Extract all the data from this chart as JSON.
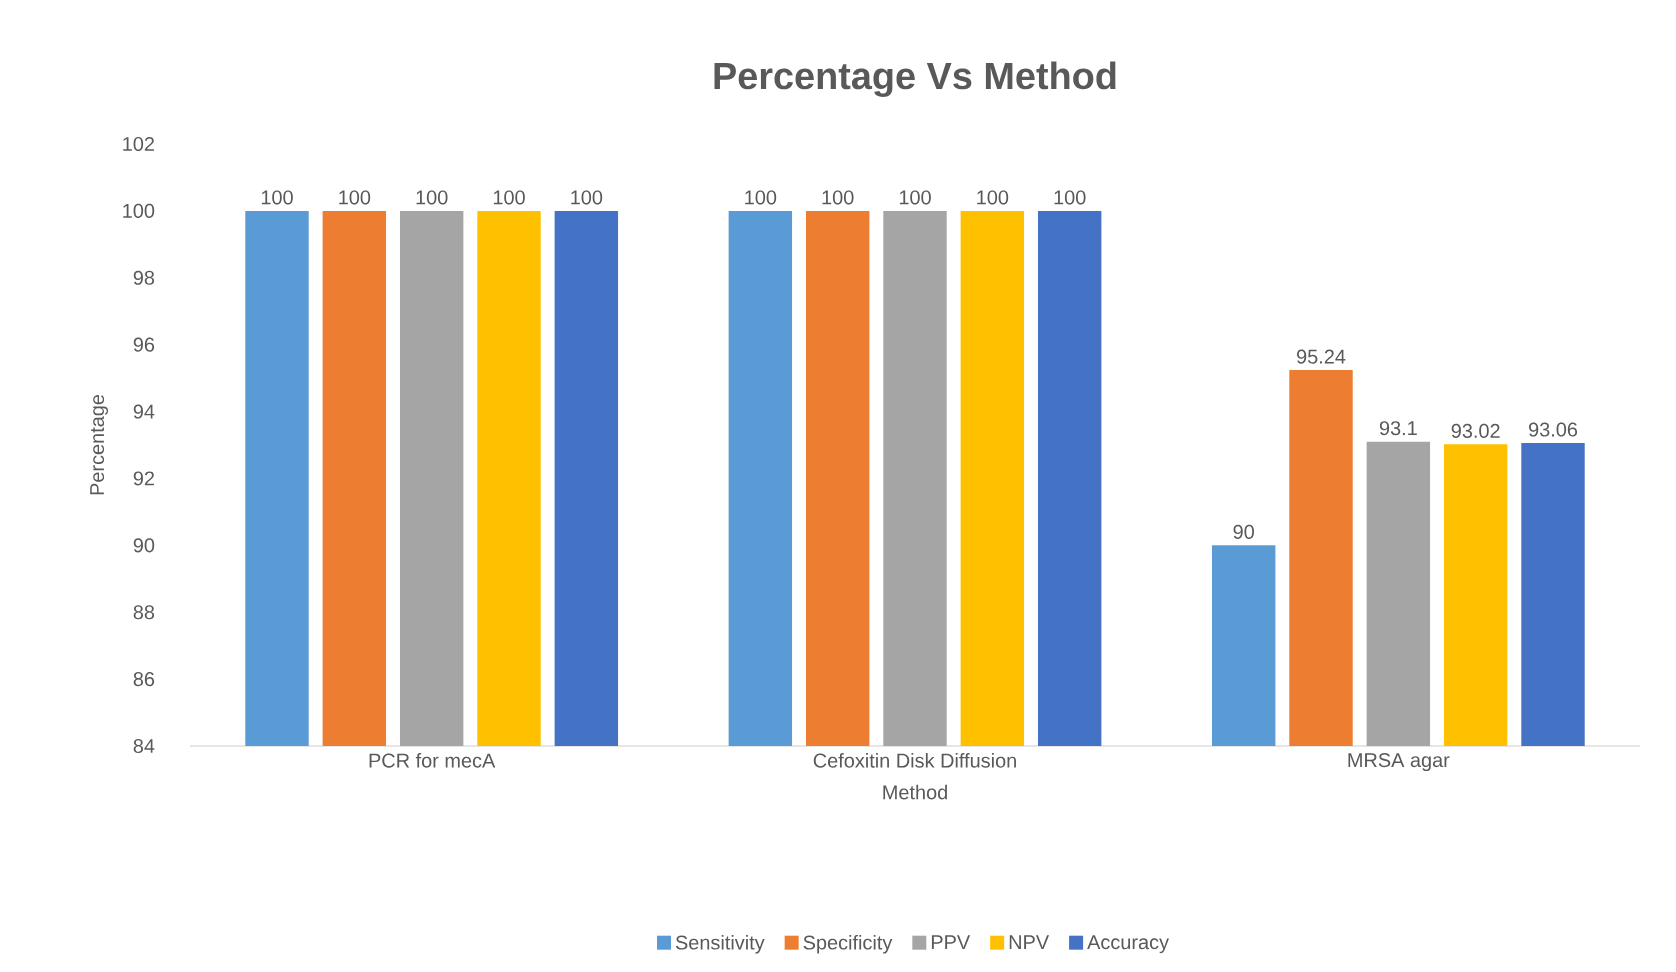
{
  "chart_data": {
    "type": "bar",
    "title": "Percentage Vs Method",
    "xlabel": "Method",
    "ylabel": "Percentage",
    "categories": [
      "PCR for mecA",
      "Cefoxitin Disk Diffusion",
      "MRSA agar"
    ],
    "series": [
      {
        "name": "Sensitivity",
        "color": "#5b9bd5",
        "values": [
          100,
          100,
          90
        ]
      },
      {
        "name": "Specificity",
        "color": "#ed7d31",
        "values": [
          100,
          100,
          95.24
        ]
      },
      {
        "name": "PPV",
        "color": "#a5a5a5",
        "values": [
          100,
          100,
          93.1
        ]
      },
      {
        "name": "NPV",
        "color": "#ffc000",
        "values": [
          100,
          100,
          93.02
        ]
      },
      {
        "name": "Accuracy",
        "color": "#4472c4",
        "values": [
          100,
          100,
          93.06
        ]
      }
    ],
    "ylim": [
      84,
      102
    ],
    "yticks": [
      84,
      86,
      88,
      90,
      92,
      94,
      96,
      98,
      100,
      102
    ],
    "data_labels": true,
    "legend": "bottom"
  }
}
